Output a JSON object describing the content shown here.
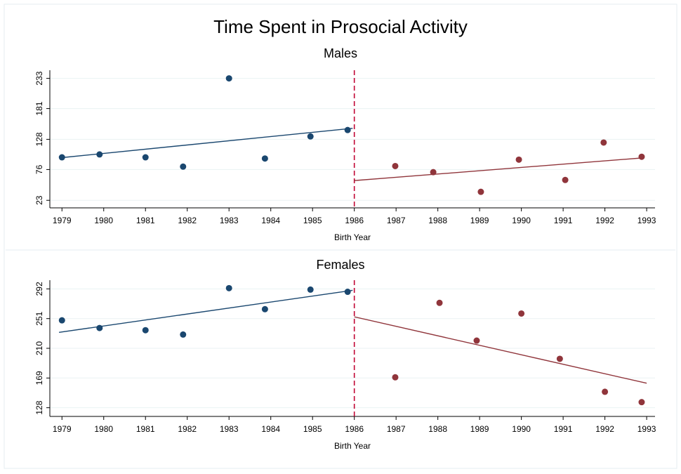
{
  "title": "Time Spent in Prosocial Activity",
  "chart_data": [
    {
      "type": "scatter",
      "title": "Males",
      "x_label": "Birth Year",
      "xlim": [
        1978.71,
        1993.2
      ],
      "xticks": [
        1979,
        1980,
        1981,
        1982,
        1983,
        1984,
        1985,
        1986,
        1987,
        1988,
        1989,
        1990,
        1991,
        1992,
        1993
      ],
      "ylim": [
        10,
        247
      ],
      "yticks": [
        23,
        76,
        128,
        181,
        233
      ],
      "grid": true,
      "cutoff": {
        "x": 1986,
        "color": "#c10534"
      },
      "series": [
        {
          "color": "#1a476f",
          "x": [
            1979.0,
            1979.9,
            1981.0,
            1981.9,
            1983.0,
            1983.86,
            1984.95,
            1985.84
          ],
          "values": [
            97,
            102,
            97,
            81,
            233,
            95,
            133,
            144
          ]
        },
        {
          "color": "#90353b",
          "x": [
            1986.98,
            1987.89,
            1989.03,
            1989.94,
            1991.05,
            1991.97,
            1992.88
          ],
          "values": [
            82,
            71.5,
            37.6,
            93,
            58,
            122.5,
            98
          ]
        }
      ],
      "fits": [
        {
          "color": "#1a476f",
          "x": [
            1978.93,
            1985.96
          ],
          "values": [
            96,
            147
          ]
        },
        {
          "color": "#90353b",
          "x": [
            1986,
            1992.9
          ],
          "values": [
            57,
            96
          ]
        }
      ]
    },
    {
      "type": "scatter",
      "title": "Females",
      "x_label": "Birth Year",
      "xlim": [
        1978.71,
        1993.2
      ],
      "xticks": [
        1979,
        1980,
        1981,
        1982,
        1983,
        1984,
        1985,
        1986,
        1987,
        1988,
        1989,
        1990,
        1991,
        1992,
        1993
      ],
      "ylim": [
        116,
        304
      ],
      "yticks": [
        128,
        169,
        210,
        251,
        292
      ],
      "grid": true,
      "cutoff": {
        "x": 1986,
        "color": "#c10534"
      },
      "series": [
        {
          "color": "#1a476f",
          "x": [
            1979.0,
            1979.9,
            1981.0,
            1981.9,
            1983.0,
            1983.86,
            1984.95,
            1985.84
          ],
          "values": [
            248.6,
            238,
            235,
            229,
            293,
            264,
            291,
            288
          ]
        },
        {
          "color": "#90353b",
          "x": [
            1986.98,
            1988.04,
            1988.93,
            1990.0,
            1990.92,
            1992.0,
            1992.88
          ],
          "values": [
            170,
            272.7,
            220.6,
            258,
            195.5,
            150,
            135.7
          ]
        }
      ],
      "fits": [
        {
          "color": "#1a476f",
          "x": [
            1978.93,
            1985.96
          ],
          "values": [
            232,
            290
          ]
        },
        {
          "color": "#90353b",
          "x": [
            1986,
            1993
          ],
          "values": [
            253.4,
            161.8
          ]
        }
      ]
    }
  ]
}
